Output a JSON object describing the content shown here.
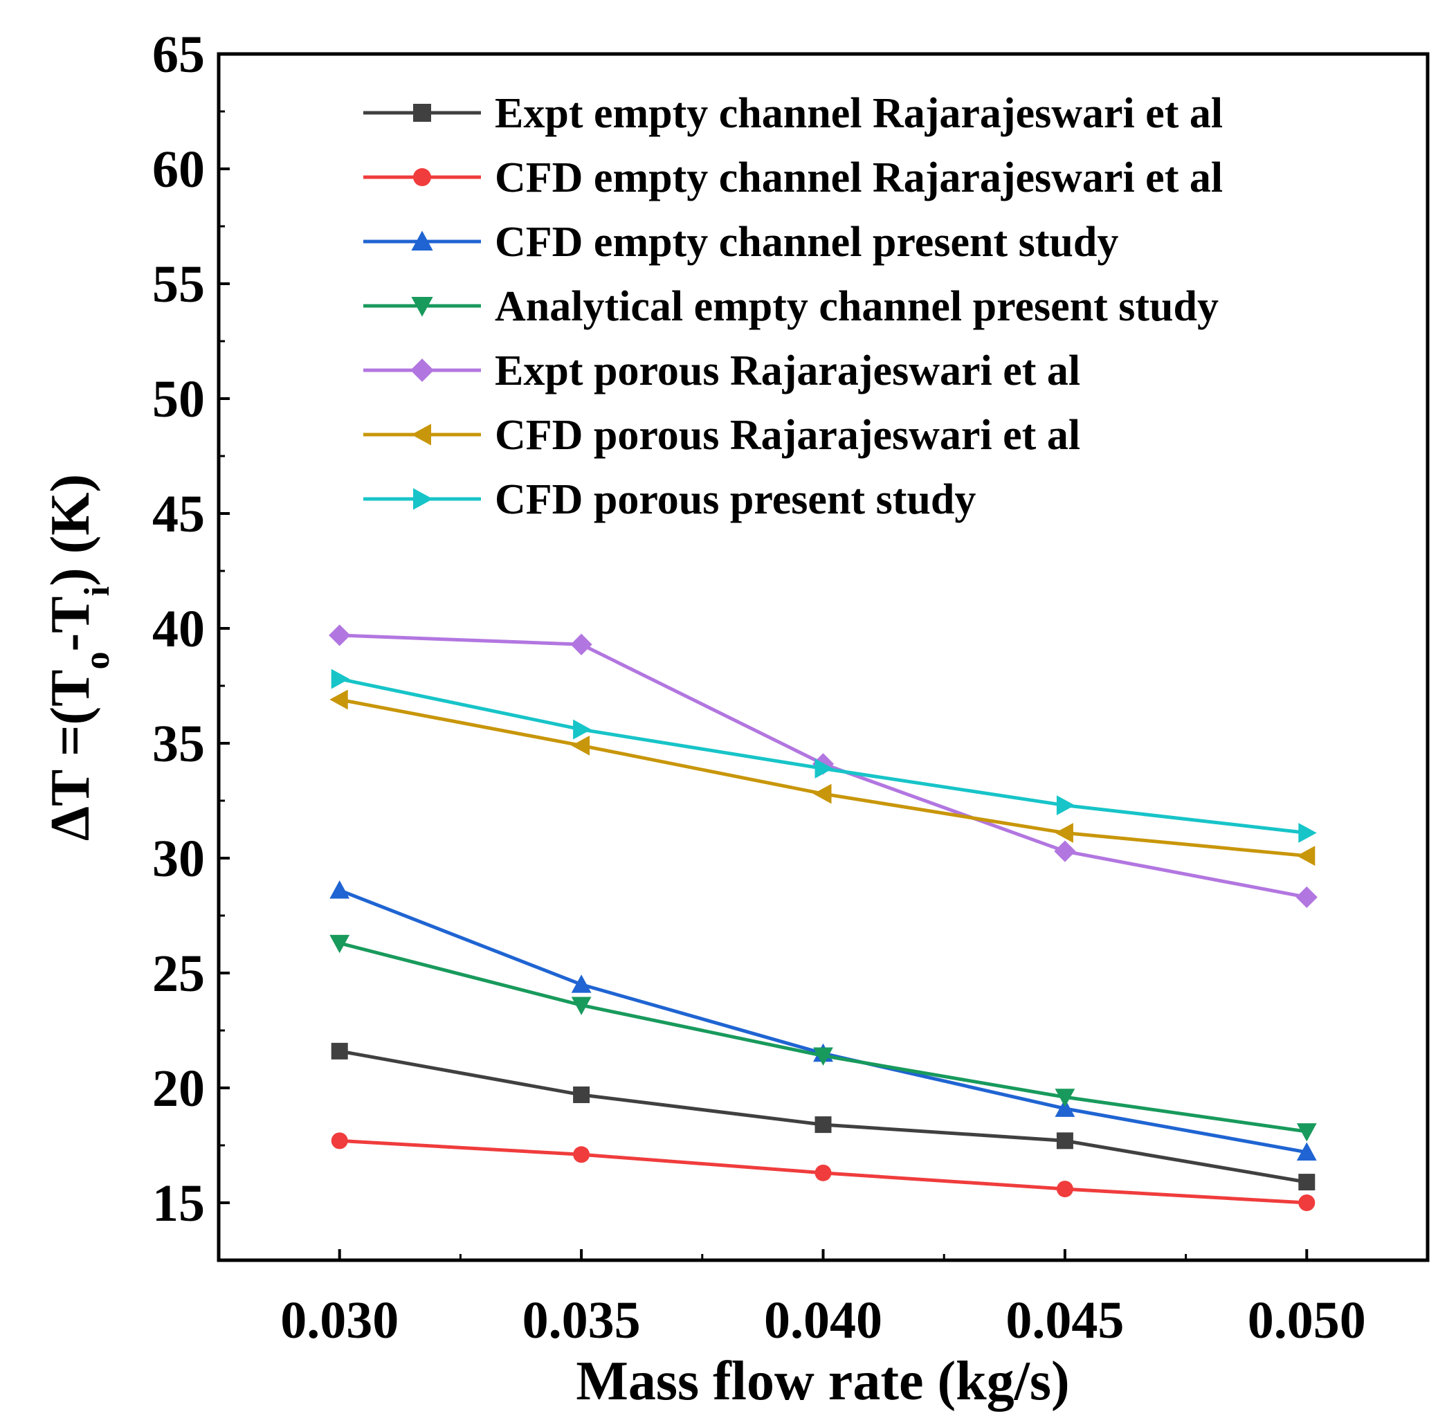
{
  "chart_data": {
    "type": "line",
    "xlabel": "Mass flow rate (kg/s)",
    "ylabel": {
      "prefix": "ΔT =(T",
      "sub1": "o",
      "mid": "-T",
      "sub2": "i",
      "suffix": ") (K)"
    },
    "xlim": [
      0.0275,
      0.0525
    ],
    "ylim": [
      12.5,
      65
    ],
    "x_ticks": [
      "0.030",
      "0.035",
      "0.040",
      "0.045",
      "0.050"
    ],
    "x_tick_values": [
      0.03,
      0.035,
      0.04,
      0.045,
      0.05
    ],
    "y_ticks": [
      "15",
      "20",
      "25",
      "30",
      "35",
      "40",
      "45",
      "50",
      "55",
      "60",
      "65"
    ],
    "y_tick_values": [
      15,
      20,
      25,
      30,
      35,
      40,
      45,
      50,
      55,
      60,
      65
    ],
    "legend_position": "top-right",
    "x": [
      0.03,
      0.035,
      0.04,
      0.045,
      0.05
    ],
    "series": [
      {
        "name": "Expt empty channel Rajarajeswari et al",
        "values": [
          21.6,
          19.7,
          18.4,
          17.7,
          15.9
        ],
        "color": "#404040",
        "marker": "square"
      },
      {
        "name": "CFD empty channel Rajarajeswari et al",
        "values": [
          17.7,
          17.1,
          16.3,
          15.6,
          15.0
        ],
        "color": "#f03c3c",
        "marker": "circle"
      },
      {
        "name": "CFD empty channel present study",
        "values": [
          28.6,
          24.5,
          21.5,
          19.1,
          17.2
        ],
        "color": "#1f64d2",
        "marker": "triangle-up"
      },
      {
        "name": "Analytical empty channel present study",
        "values": [
          26.3,
          23.6,
          21.4,
          19.6,
          18.1
        ],
        "color": "#189a5c",
        "marker": "triangle-down"
      },
      {
        "name": "Expt porous Rajarajeswari et al",
        "values": [
          39.7,
          39.3,
          34.1,
          30.3,
          28.3
        ],
        "color": "#b276e0",
        "marker": "diamond"
      },
      {
        "name": "CFD porous Rajarajeswari et al",
        "values": [
          36.9,
          34.9,
          32.8,
          31.1,
          30.1
        ],
        "color": "#c8960a",
        "marker": "triangle-left"
      },
      {
        "name": "CFD porous present study",
        "values": [
          37.8,
          35.6,
          33.9,
          32.3,
          31.1
        ],
        "color": "#17c4c8",
        "marker": "triangle-right"
      }
    ]
  }
}
